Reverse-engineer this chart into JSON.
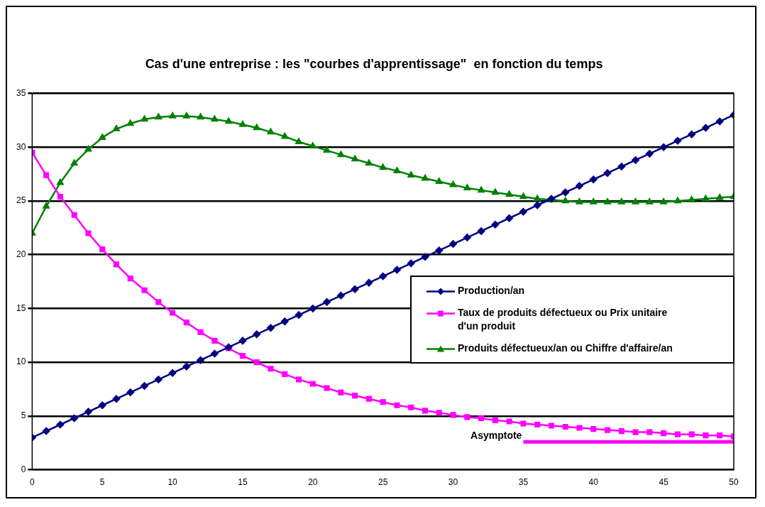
{
  "chart_data": {
    "type": "line",
    "title": "Cas d'une entreprise : les \"courbes d'apprentissage\"  en fonction du temps",
    "x": [
      0,
      1,
      2,
      3,
      4,
      5,
      6,
      7,
      8,
      9,
      10,
      11,
      12,
      13,
      14,
      15,
      16,
      17,
      18,
      19,
      20,
      21,
      22,
      23,
      24,
      25,
      26,
      27,
      28,
      29,
      30,
      31,
      32,
      33,
      34,
      35,
      36,
      37,
      38,
      39,
      40,
      41,
      42,
      43,
      44,
      45,
      46,
      47,
      48,
      49,
      50
    ],
    "xlim": [
      0,
      50
    ],
    "xticks": [
      0,
      5,
      10,
      15,
      20,
      25,
      30,
      35,
      40,
      45,
      50
    ],
    "ylim": [
      0,
      35
    ],
    "yticks": [
      0,
      5,
      10,
      15,
      20,
      25,
      30,
      35
    ],
    "grid": "y",
    "legend": "right",
    "series": [
      {
        "name": "Production/an",
        "color": "#000080",
        "marker": "diamond",
        "values": [
          3,
          3.6,
          4.2,
          4.8,
          5.4,
          6,
          6.6,
          7.2,
          7.8,
          8.4,
          9,
          9.6,
          10.2,
          10.8,
          11.4,
          12,
          12.6,
          13.2,
          13.8,
          14.4,
          15,
          15.6,
          16.2,
          16.8,
          17.4,
          18,
          18.6,
          19.2,
          19.8,
          20.4,
          21,
          21.6,
          22.2,
          22.8,
          23.4,
          24,
          24.6,
          25.2,
          25.8,
          26.4,
          27,
          27.6,
          28.2,
          28.8,
          29.4,
          30,
          30.6,
          31.2,
          31.8,
          32.4,
          33
        ]
      },
      {
        "name": "Taux de produits défectueux ou Prix unitaire d'un produit",
        "color": "#ff00ff",
        "marker": "square",
        "values": [
          29.5,
          27.4,
          25.4,
          23.7,
          22,
          20.5,
          19.1,
          17.8,
          16.7,
          15.6,
          14.6,
          13.7,
          12.8,
          12,
          11.3,
          10.6,
          10,
          9.4,
          8.9,
          8.4,
          8,
          7.6,
          7.2,
          6.9,
          6.6,
          6.3,
          6,
          5.8,
          5.5,
          5.3,
          5.1,
          4.9,
          4.8,
          4.6,
          4.5,
          4.3,
          4.2,
          4.1,
          4,
          3.9,
          3.8,
          3.7,
          3.6,
          3.5,
          3.5,
          3.4,
          3.3,
          3.3,
          3.2,
          3.2,
          3.1
        ]
      },
      {
        "name": "Produits défectueux/an ou Chiffre d'affaire/an",
        "color": "#008000",
        "marker": "triangle",
        "values": [
          22,
          24.5,
          26.7,
          28.5,
          29.8,
          30.9,
          31.7,
          32.2,
          32.6,
          32.8,
          32.9,
          32.9,
          32.8,
          32.6,
          32.4,
          32.1,
          31.8,
          31.4,
          31,
          30.5,
          30.1,
          29.7,
          29.3,
          28.9,
          28.5,
          28.1,
          27.8,
          27.4,
          27.1,
          26.8,
          26.5,
          26.2,
          26,
          25.8,
          25.6,
          25.4,
          25.2,
          25.1,
          25,
          24.9,
          24.9,
          24.9,
          24.9,
          24.9,
          24.9,
          24.9,
          25,
          25.1,
          25.2,
          25.3,
          25.4
        ]
      },
      {
        "name": "Asymptote",
        "color": "#ff00ff",
        "marker": "none",
        "x": [
          35,
          50
        ],
        "values": [
          2.6,
          2.6
        ]
      }
    ]
  }
}
